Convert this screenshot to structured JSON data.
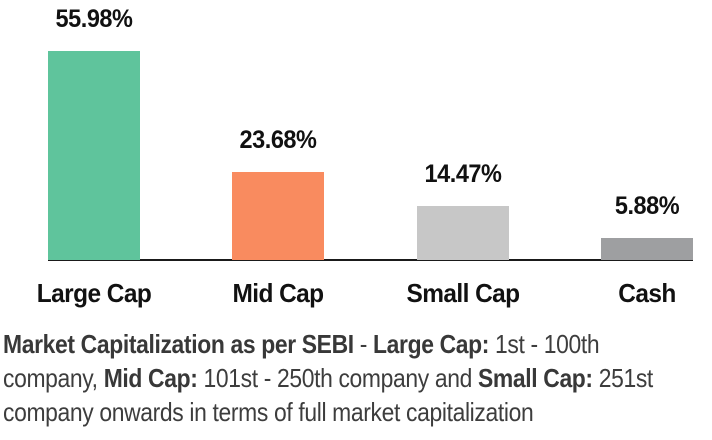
{
  "chart_data": {
    "type": "bar",
    "categories": [
      "Large Cap",
      "Mid Cap",
      "Small Cap",
      "Cash"
    ],
    "values": [
      55.98,
      23.68,
      14.47,
      5.88
    ],
    "value_labels": [
      "55.98%",
      "23.68%",
      "14.47%",
      "5.88%"
    ],
    "bar_colors": [
      "#5FC49C",
      "#F98B5F",
      "#C7C7C7",
      "#9E9FA1"
    ],
    "title": "",
    "xlabel": "",
    "ylabel": "",
    "ylim": [
      0,
      60
    ],
    "grid": false,
    "legend": "none",
    "axis_line_color": "#1a1a1a",
    "label_color": "#111111"
  },
  "footnote": {
    "text_color": "#3d3d3d",
    "lines": [
      [
        {
          "text": "Market Capitalization as per SEBI",
          "bold": true
        },
        {
          "text": " - ",
          "bold": false
        },
        {
          "text": "Large Cap:",
          "bold": true
        },
        {
          "text": " 1st - 100th",
          "bold": false
        }
      ],
      [
        {
          "text": "company, ",
          "bold": false
        },
        {
          "text": "Mid Cap:",
          "bold": true
        },
        {
          "text": " 101st - 250th company and ",
          "bold": false
        },
        {
          "text": "Small Cap:",
          "bold": true
        },
        {
          "text": " 251st",
          "bold": false
        }
      ],
      [
        {
          "text": "company onwards in terms of full market capitalization",
          "bold": false
        }
      ]
    ]
  }
}
